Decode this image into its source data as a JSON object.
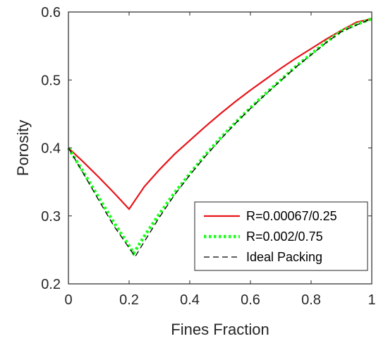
{
  "chart_data": {
    "type": "line",
    "xlabel": "Fines Fraction",
    "ylabel": "Porosity",
    "xlim": [
      0,
      1
    ],
    "ylim": [
      0.2,
      0.6
    ],
    "xticks": [
      0,
      0.2,
      0.4,
      0.6,
      0.8,
      1
    ],
    "xtick_labels": [
      "0",
      "0.2",
      "0.4",
      "0.6",
      "0.8",
      "1"
    ],
    "yticks": [
      0.2,
      0.3,
      0.4,
      0.5,
      0.6
    ],
    "ytick_labels": [
      "0.2",
      "0.3",
      "0.4",
      "0.5",
      "0.6"
    ],
    "grid": false,
    "legend_position": "bottom-right",
    "series": [
      {
        "name": "R=0.00067/0.25",
        "color": "#e8141b",
        "style": "solid",
        "x": [
          0,
          0.05,
          0.1,
          0.15,
          0.2,
          0.25,
          0.3,
          0.35,
          0.4,
          0.45,
          0.5,
          0.55,
          0.6,
          0.65,
          0.7,
          0.75,
          0.8,
          0.85,
          0.9,
          0.95,
          1.0
        ],
        "y": [
          0.4,
          0.379,
          0.357,
          0.334,
          0.31,
          0.343,
          0.368,
          0.391,
          0.411,
          0.431,
          0.45,
          0.468,
          0.485,
          0.501,
          0.517,
          0.532,
          0.546,
          0.56,
          0.573,
          0.585,
          0.59
        ]
      },
      {
        "name": "R=0.002/0.75",
        "color": "#19ff19",
        "style": "dotted",
        "x": [
          0,
          0.05,
          0.1,
          0.15,
          0.2,
          0.215,
          0.25,
          0.3,
          0.35,
          0.4,
          0.45,
          0.5,
          0.55,
          0.6,
          0.65,
          0.7,
          0.75,
          0.8,
          0.85,
          0.9,
          0.95,
          1.0
        ],
        "y": [
          0.4,
          0.364,
          0.327,
          0.29,
          0.256,
          0.245,
          0.27,
          0.303,
          0.334,
          0.362,
          0.389,
          0.414,
          0.437,
          0.459,
          0.48,
          0.5,
          0.52,
          0.538,
          0.556,
          0.572,
          0.582,
          0.59
        ]
      },
      {
        "name": "Ideal Packing",
        "color": "#000000",
        "style": "dashed",
        "x": [
          0,
          0.05,
          0.1,
          0.15,
          0.2,
          0.22,
          0.25,
          0.3,
          0.35,
          0.4,
          0.45,
          0.5,
          0.55,
          0.6,
          0.65,
          0.7,
          0.75,
          0.8,
          0.85,
          0.9,
          0.95,
          1.0
        ],
        "y": [
          0.4,
          0.362,
          0.323,
          0.285,
          0.253,
          0.24,
          0.262,
          0.298,
          0.331,
          0.36,
          0.387,
          0.412,
          0.436,
          0.458,
          0.479,
          0.499,
          0.519,
          0.537,
          0.555,
          0.571,
          0.581,
          0.59
        ]
      }
    ]
  }
}
